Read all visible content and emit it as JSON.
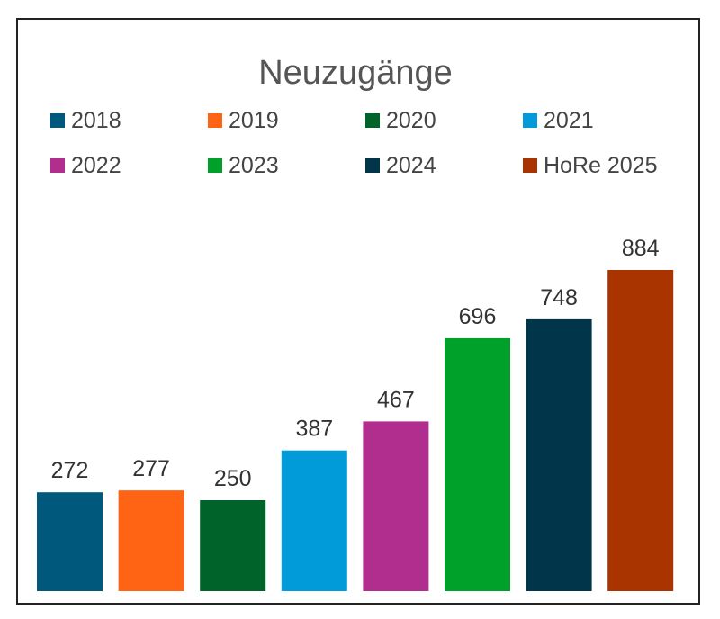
{
  "chart_data": {
    "type": "bar",
    "title": "Neuzugänge",
    "categories": [
      "2018",
      "2019",
      "2020",
      "2021",
      "2022",
      "2023",
      "2024",
      "HoRe 2025"
    ],
    "values": [
      272,
      277,
      250,
      387,
      467,
      696,
      748,
      884
    ],
    "colors": [
      "#00587c",
      "#ff6414",
      "#00632a",
      "#009bd8",
      "#b22e8e",
      "#00a12a",
      "#01354a",
      "#a93400"
    ],
    "legend_position": "top",
    "grid": false,
    "ylim": [
      0,
      884
    ],
    "xlabel": "",
    "ylabel": ""
  }
}
